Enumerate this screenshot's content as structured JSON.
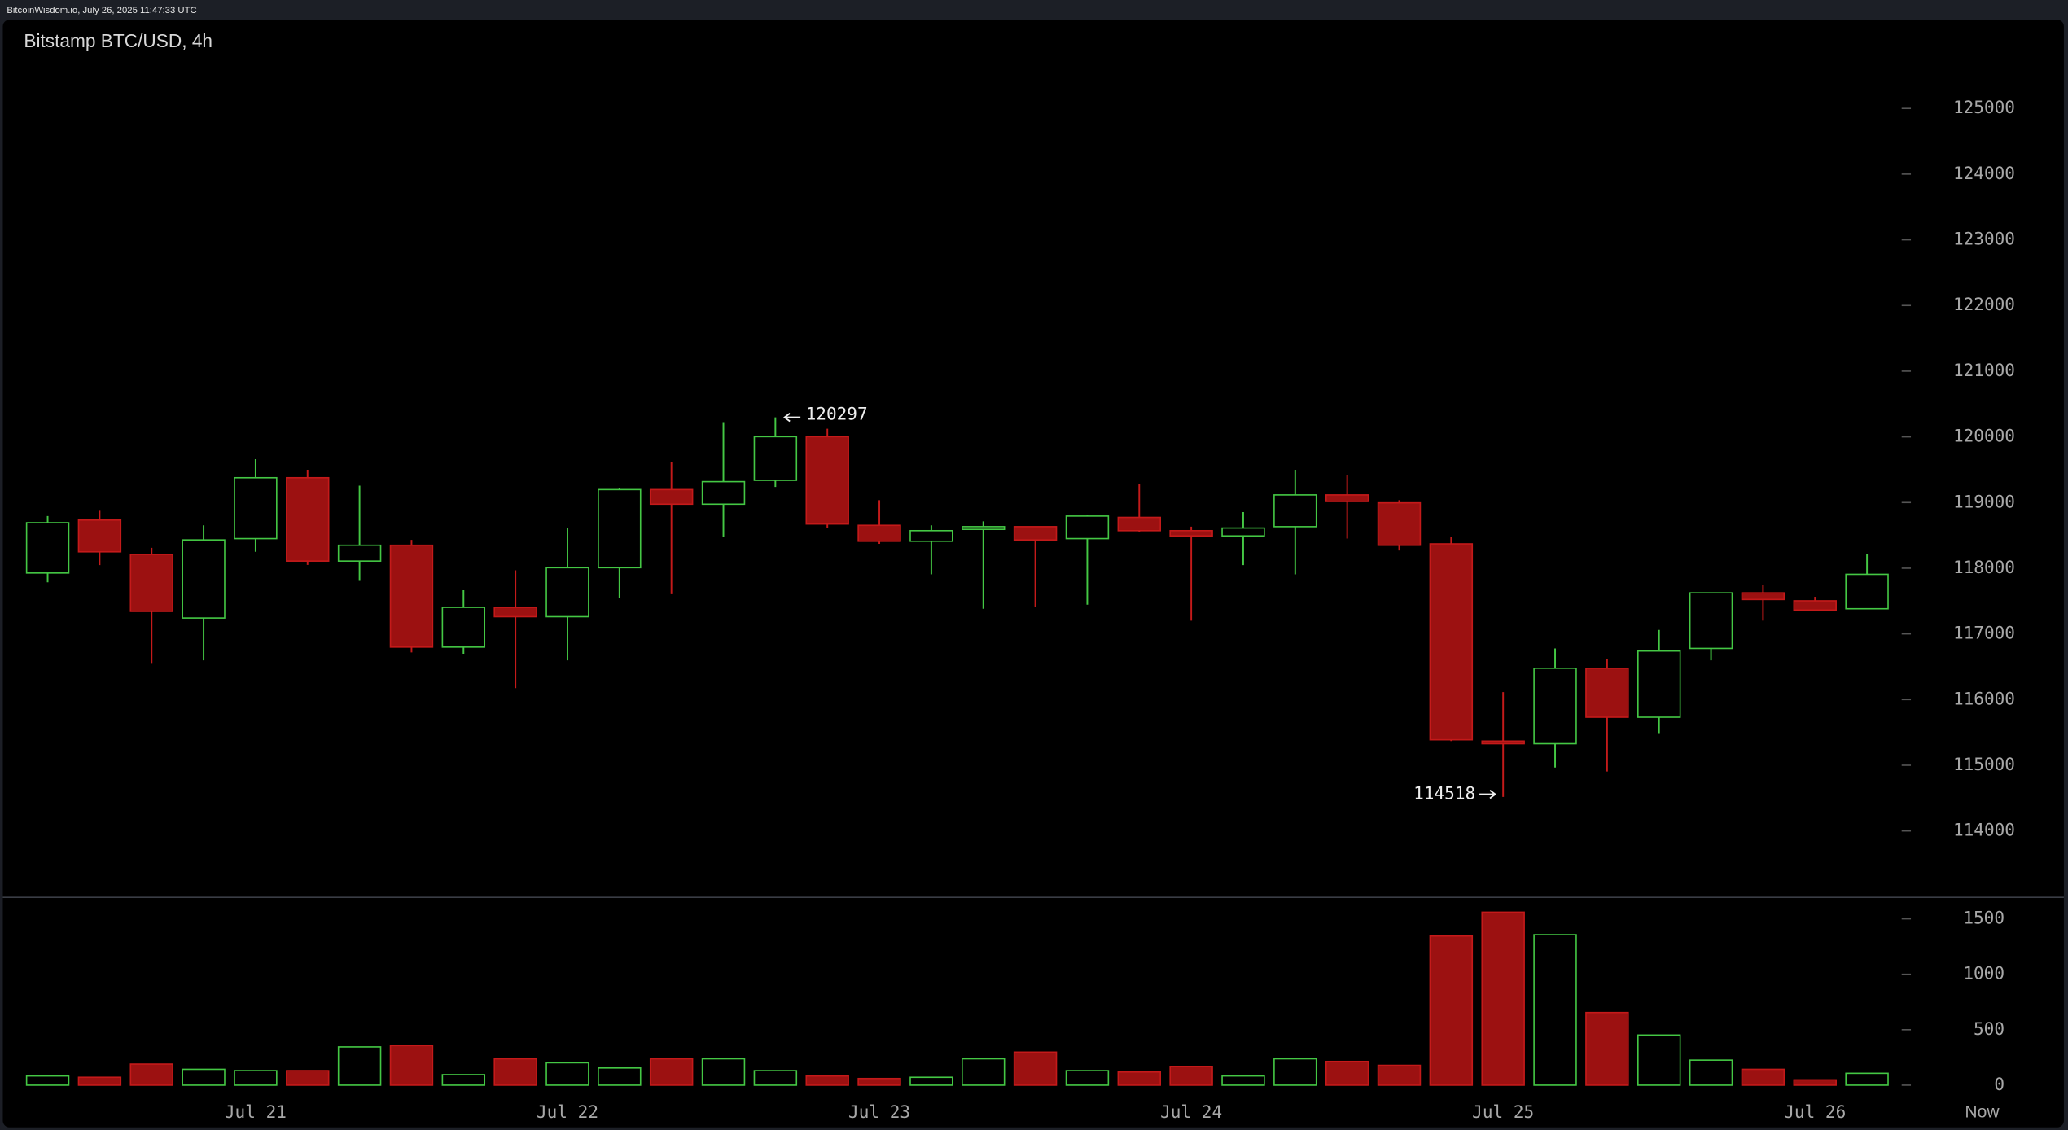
{
  "header": {
    "text": "BitcoinWisdom.io, July 26, 2025 11:47:33 UTC"
  },
  "chart_data": {
    "type": "candlestick",
    "title": "Bitstamp BTC/USD, 4h",
    "categories": [
      null,
      null,
      null,
      null,
      "Jul 21",
      null,
      null,
      null,
      null,
      null,
      "Jul 22",
      null,
      null,
      null,
      null,
      null,
      "Jul 23",
      null,
      null,
      null,
      null,
      null,
      "Jul 24",
      null,
      null,
      null,
      null,
      null,
      "Jul 25",
      null,
      null,
      null,
      null,
      null,
      "Jul 26",
      null
    ],
    "now_label": "Now",
    "open": [
      117927,
      118733,
      118210,
      117242,
      118451,
      119378,
      118109,
      118350,
      116799,
      117404,
      117262,
      118008,
      119197,
      118975,
      119338,
      120003,
      118653,
      118411,
      118592,
      118633,
      118451,
      118774,
      118572,
      118492,
      118633,
      119116,
      118995,
      118371,
      115368,
      115328,
      116477,
      115731,
      116779,
      117625,
      117504,
      117383
    ],
    "high": [
      118794,
      118874,
      118310,
      118653,
      119660,
      119499,
      119257,
      118431,
      117665,
      117968,
      118612,
      119217,
      119620,
      120224,
      120297,
      120124,
      119036,
      118653,
      118713,
      118633,
      118814,
      119277,
      118633,
      118854,
      119499,
      119418,
      119036,
      118471,
      116114,
      116779,
      116617,
      117061,
      117625,
      117746,
      117565,
      118210
    ],
    "low": [
      117786,
      118048,
      116557,
      116597,
      118250,
      118050,
      117807,
      116718,
      116698,
      116174,
      116597,
      117545,
      117605,
      118471,
      119237,
      118612,
      118371,
      117907,
      117383,
      117404,
      117444,
      118552,
      117202,
      118048,
      117907,
      118451,
      118270,
      115368,
      114518,
      114965,
      114905,
      115489,
      116597,
      117202,
      117363,
      117383
    ],
    "close": [
      118693,
      118250,
      117343,
      118431,
      119378,
      118109,
      118350,
      116799,
      117404,
      117262,
      118008,
      119197,
      118975,
      119318,
      120003,
      118673,
      118411,
      118572,
      118633,
      118431,
      118794,
      118572,
      118492,
      118612,
      119116,
      119016,
      118350,
      115388,
      115328,
      116477,
      115731,
      116739,
      117625,
      117524,
      117363,
      117907
    ],
    "volume": [
      83,
      71,
      190,
      143,
      131,
      131,
      345,
      357,
      95,
      238,
      202,
      155,
      238,
      238,
      131,
      83,
      60,
      71,
      238,
      298,
      131,
      119,
      167,
      83,
      238,
      214,
      179,
      1345,
      1560,
      1357,
      655,
      452,
      226,
      143,
      48,
      107
    ],
    "up_color": "#44c744",
    "down_color": "#9c1111",
    "down_edge_color": "#c41a1a",
    "ylim": [
      113000,
      126350
    ],
    "yticks": [
      114000,
      115000,
      116000,
      117000,
      118000,
      119000,
      120000,
      121000,
      122000,
      123000,
      124000,
      125000
    ],
    "volume_ylim": [
      0,
      1700
    ],
    "volume_yticks": [
      0,
      500,
      1000,
      1500
    ],
    "highlight_high_index": 14,
    "highlight_low_index": 28
  }
}
